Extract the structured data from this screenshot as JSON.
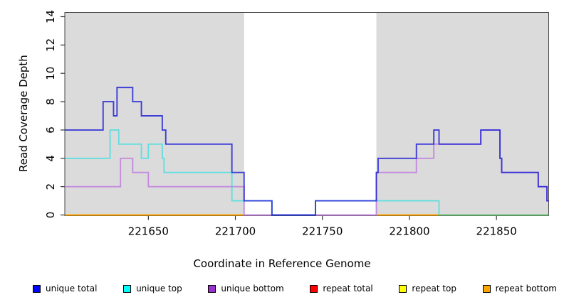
{
  "chart_data": {
    "type": "line",
    "subtype": "step-coverage",
    "title": "",
    "xlabel": "Coordinate in Reference Genome",
    "ylabel": "Read Coverage Depth",
    "xlim": [
      221602,
      221880
    ],
    "ylim": [
      -0.05,
      14.3
    ],
    "x_ticks": [
      221650,
      221700,
      221750,
      221800,
      221850
    ],
    "x_tick_labels": [
      "221650",
      "221700",
      "221750",
      "221800",
      "221850"
    ],
    "y_ticks": [
      0,
      2,
      4,
      6,
      8,
      10,
      12,
      14
    ],
    "y_tick_labels": [
      "0",
      "2",
      "4",
      "6",
      "8",
      "10",
      "12",
      "14"
    ],
    "grid": false,
    "background_color": "#ffffff",
    "shaded_regions": [
      {
        "name": "repeat-region-left",
        "from": 221602,
        "to": 221705,
        "color": "#DBDBDB"
      },
      {
        "name": "repeat-region-right",
        "from": 221781,
        "to": 221880,
        "color": "#DBDBDB"
      }
    ],
    "series": [
      {
        "name": "repeat top",
        "color": "#FFFF00",
        "opacity": 1,
        "points": [
          [
            221602,
            0
          ],
          [
            221880,
            0
          ]
        ]
      },
      {
        "name": "repeat total",
        "color": "#DD2222",
        "opacity": 1,
        "points": [
          [
            221602,
            0
          ],
          [
            221880,
            0
          ]
        ]
      },
      {
        "name": "repeat bottom",
        "color": "#FFA500",
        "opacity": 1,
        "points": [
          [
            221602,
            0
          ],
          [
            221880,
            0
          ]
        ]
      },
      {
        "name": "unique bottom",
        "color": "#C48BDD",
        "opacity": 1,
        "points": [
          [
            221602,
            2
          ],
          [
            221634,
            4
          ],
          [
            221641,
            3
          ],
          [
            221650,
            2
          ],
          [
            221705,
            0
          ],
          [
            221781,
            3
          ],
          [
            221804,
            4
          ],
          [
            221814,
            5
          ],
          [
            221841,
            6
          ],
          [
            221852,
            4
          ],
          [
            221853,
            3
          ],
          [
            221874,
            2
          ],
          [
            221879,
            1
          ],
          [
            221880,
            1
          ]
        ]
      },
      {
        "name": "unique top",
        "color": "#00E0E0",
        "opacity": 0.55,
        "points": [
          [
            221602,
            4
          ],
          [
            221628,
            6
          ],
          [
            221633,
            5
          ],
          [
            221646,
            4
          ],
          [
            221650,
            5
          ],
          [
            221658,
            4
          ],
          [
            221659,
            3
          ],
          [
            221698,
            1
          ],
          [
            221721,
            0
          ],
          [
            221746,
            1
          ],
          [
            221817,
            0
          ],
          [
            221880,
            0
          ]
        ]
      },
      {
        "name": "unique total",
        "color": "#2222D6",
        "opacity": 0.85,
        "points": [
          [
            221602,
            6
          ],
          [
            221624,
            8
          ],
          [
            221630,
            7
          ],
          [
            221632,
            9
          ],
          [
            221641,
            8
          ],
          [
            221646,
            7
          ],
          [
            221658,
            6
          ],
          [
            221660,
            5
          ],
          [
            221698,
            3
          ],
          [
            221705,
            1
          ],
          [
            221721,
            0
          ],
          [
            221746,
            1
          ],
          [
            221781,
            3
          ],
          [
            221782,
            4
          ],
          [
            221804,
            5
          ],
          [
            221814,
            6
          ],
          [
            221817,
            5
          ],
          [
            221841,
            6
          ],
          [
            221852,
            4
          ],
          [
            221853,
            3
          ],
          [
            221874,
            2
          ],
          [
            221879,
            1
          ],
          [
            221880,
            1
          ]
        ]
      }
    ],
    "legend": [
      {
        "label": "unique total",
        "color": "#0000FF"
      },
      {
        "label": "unique top",
        "color": "#00FFFF"
      },
      {
        "label": "unique bottom",
        "color": "#9932CC"
      },
      {
        "label": "repeat total",
        "color": "#FF0000"
      },
      {
        "label": "repeat top",
        "color": "#FFFF00"
      },
      {
        "label": "repeat bottom",
        "color": "#FFA500"
      }
    ],
    "legend_position": "bottom",
    "axis_color": "#444444",
    "tick_color": "#333333"
  }
}
